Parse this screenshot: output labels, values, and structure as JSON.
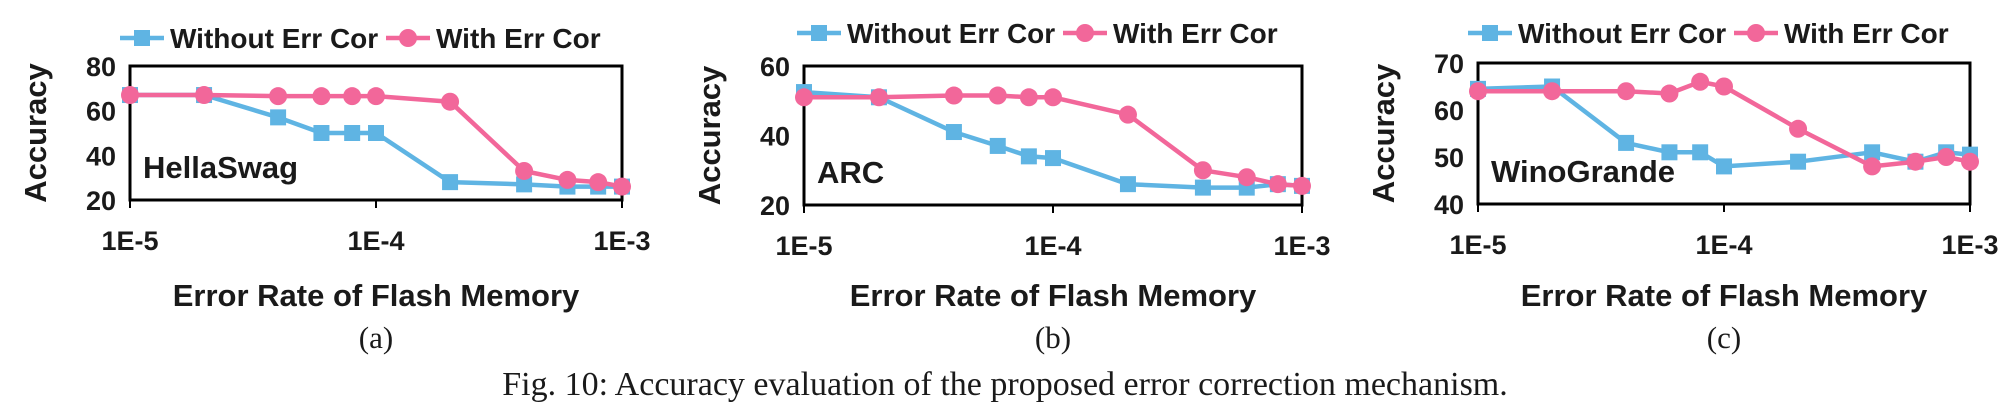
{
  "figure": {
    "caption": "Fig. 10: Accuracy evaluation of the proposed error correction mechanism.",
    "series_colors": {
      "Without Err Cor": "#5fb4e3",
      "With Err Cor": "#f2679a"
    }
  },
  "chart_data": [
    {
      "type": "line",
      "panel_label": "(a)",
      "annotation": "HellaSwag",
      "xlabel": "Error Rate of Flash Memory",
      "ylabel": "Accuracy",
      "x_scale": "log",
      "xlim": [
        1e-05,
        0.001
      ],
      "x_ticks": [
        "1E-5",
        "1E-4",
        "1E-3"
      ],
      "ylim": [
        20,
        80
      ],
      "y_ticks": [
        "20",
        "40",
        "60",
        "80"
      ],
      "legend": "top",
      "series": [
        {
          "name": "Without Err Cor",
          "color": "#5fb4e3",
          "marker": "square",
          "x": [
            1e-05,
            2e-05,
            4e-05,
            6e-05,
            8e-05,
            0.0001,
            0.0002,
            0.0004,
            0.0006,
            0.0008,
            0.001
          ],
          "y": [
            67,
            67,
            57,
            50,
            50,
            50,
            28,
            27,
            26,
            26,
            26
          ]
        },
        {
          "name": "With Err Cor",
          "color": "#f2679a",
          "marker": "circle",
          "x": [
            1e-05,
            2e-05,
            4e-05,
            6e-05,
            8e-05,
            0.0001,
            0.0002,
            0.0004,
            0.0006,
            0.0008,
            0.001
          ],
          "y": [
            67,
            67,
            66.5,
            66.5,
            66.5,
            66.5,
            64,
            33,
            29,
            28,
            26
          ]
        }
      ]
    },
    {
      "type": "line",
      "panel_label": "(b)",
      "annotation": "ARC",
      "xlabel": "Error Rate of Flash Memory",
      "ylabel": "Accuracy",
      "x_scale": "log",
      "xlim": [
        1e-05,
        0.001
      ],
      "x_ticks": [
        "1E-5",
        "1E-4",
        "1E-3"
      ],
      "ylim": [
        20,
        60
      ],
      "y_ticks": [
        "20",
        "40",
        "60"
      ],
      "legend": "top",
      "series": [
        {
          "name": "Without Err Cor",
          "color": "#5fb4e3",
          "marker": "square",
          "x": [
            1e-05,
            2e-05,
            4e-05,
            6e-05,
            8e-05,
            0.0001,
            0.0002,
            0.0004,
            0.0006,
            0.0008,
            0.001
          ],
          "y": [
            52.5,
            51,
            41,
            37,
            34,
            33.5,
            26,
            25,
            25,
            26,
            25.5
          ]
        },
        {
          "name": "With Err Cor",
          "color": "#f2679a",
          "marker": "circle",
          "x": [
            1e-05,
            2e-05,
            4e-05,
            6e-05,
            8e-05,
            0.0001,
            0.0002,
            0.0004,
            0.0006,
            0.0008,
            0.001
          ],
          "y": [
            51,
            51,
            51.5,
            51.5,
            51,
            51,
            46,
            30,
            28,
            26,
            25.5
          ]
        }
      ]
    },
    {
      "type": "line",
      "panel_label": "(c)",
      "annotation": "WinoGrande",
      "xlabel": "Error Rate of Flash Memory",
      "ylabel": "Accuracy",
      "x_scale": "log",
      "xlim": [
        1e-05,
        0.001
      ],
      "x_ticks": [
        "1E-5",
        "1E-4",
        "1E-3"
      ],
      "ylim": [
        40,
        70
      ],
      "y_ticks": [
        "40",
        "50",
        "60",
        "70"
      ],
      "legend": "top",
      "series": [
        {
          "name": "Without Err Cor",
          "color": "#5fb4e3",
          "marker": "square",
          "x": [
            1e-05,
            2e-05,
            4e-05,
            6e-05,
            8e-05,
            0.0001,
            0.0002,
            0.0004,
            0.0006,
            0.0008,
            0.001
          ],
          "y": [
            64.5,
            65,
            53,
            51,
            51,
            48,
            49,
            51,
            49,
            51,
            50.5
          ]
        },
        {
          "name": "With Err Cor",
          "color": "#f2679a",
          "marker": "circle",
          "x": [
            1e-05,
            2e-05,
            4e-05,
            6e-05,
            8e-05,
            0.0001,
            0.0002,
            0.0004,
            0.0006,
            0.0008,
            0.001
          ],
          "y": [
            64,
            64,
            64,
            63.5,
            66,
            65,
            56,
            48,
            49,
            50,
            49
          ]
        }
      ]
    }
  ]
}
